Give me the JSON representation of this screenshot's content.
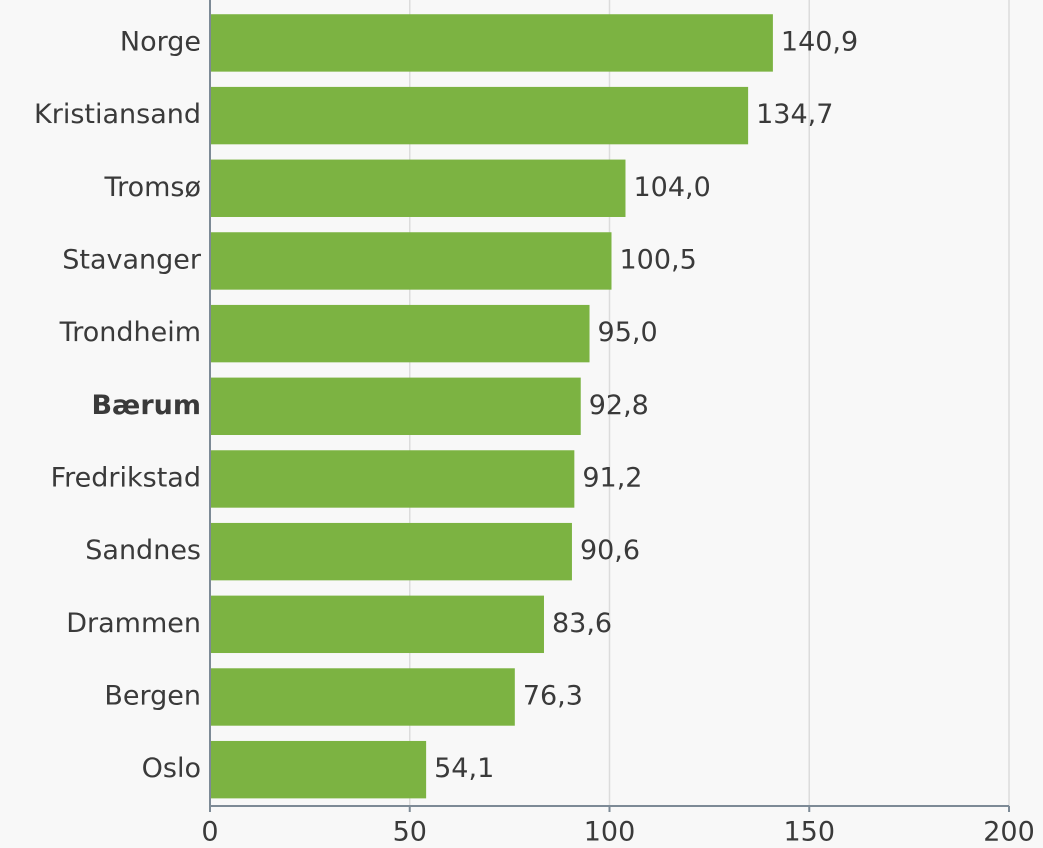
{
  "chart_data": {
    "type": "bar",
    "orientation": "horizontal",
    "categories": [
      "Norge",
      "Kristiansand",
      "Tromsø",
      "Stavanger",
      "Trondheim",
      "Bærum",
      "Fredrikstad",
      "Sandnes",
      "Drammen",
      "Bergen",
      "Oslo"
    ],
    "values": [
      140.9,
      134.7,
      104.0,
      100.5,
      95.0,
      92.8,
      91.2,
      90.6,
      83.6,
      76.3,
      54.1
    ],
    "value_labels": [
      "140,9",
      "134,7",
      "104,0",
      "100,5",
      "95,0",
      "92,8",
      "91,2",
      "90,6",
      "83,6",
      "76,3",
      "54,1"
    ],
    "color": "#7cb342",
    "highlight_categories": [
      "Bærum"
    ],
    "xlim": [
      0,
      200
    ],
    "xticks": [
      0,
      50,
      100,
      150,
      200
    ],
    "grid": true
  }
}
